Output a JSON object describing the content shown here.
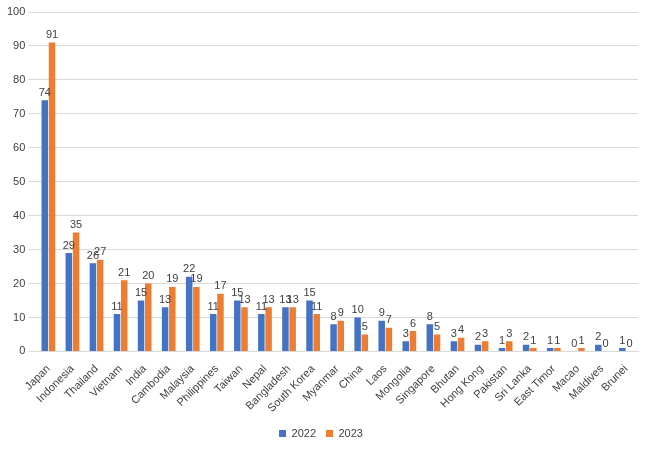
{
  "chart_data": {
    "type": "bar",
    "categories": [
      "Japan",
      "Indonesia",
      "Thailand",
      "Vietnam",
      "India",
      "Cambodia",
      "Malaysia",
      "Philippines",
      "Taiwan",
      "Nepal",
      "Bangladesh",
      "South Korea",
      "Myanmar",
      "China",
      "Laos",
      "Mongolia",
      "Singapore",
      "Bhutan",
      "Hong Kong",
      "Pakistan",
      "Sri Lanka",
      "East Timor",
      "Macao",
      "Maldives",
      "Brunei"
    ],
    "series": [
      {
        "name": "2022",
        "color": "#4472c4",
        "values": [
          74,
          29,
          26,
          11,
          15,
          13,
          22,
          11,
          15,
          11,
          13,
          15,
          8,
          10,
          9,
          3,
          8,
          3,
          2,
          1,
          2,
          1,
          0,
          2,
          1
        ]
      },
      {
        "name": "2023",
        "color": "#ed7d31",
        "values": [
          91,
          35,
          27,
          21,
          20,
          19,
          19,
          17,
          13,
          13,
          13,
          11,
          9,
          5,
          7,
          6,
          5,
          4,
          3,
          3,
          1,
          1,
          1,
          0,
          0
        ]
      }
    ],
    "ylim": [
      0,
      100
    ],
    "yticks": [
      0,
      10,
      20,
      30,
      40,
      50,
      60,
      70,
      80,
      90,
      100
    ],
    "grid": true,
    "legend": "bottom",
    "data_labels": true
  }
}
